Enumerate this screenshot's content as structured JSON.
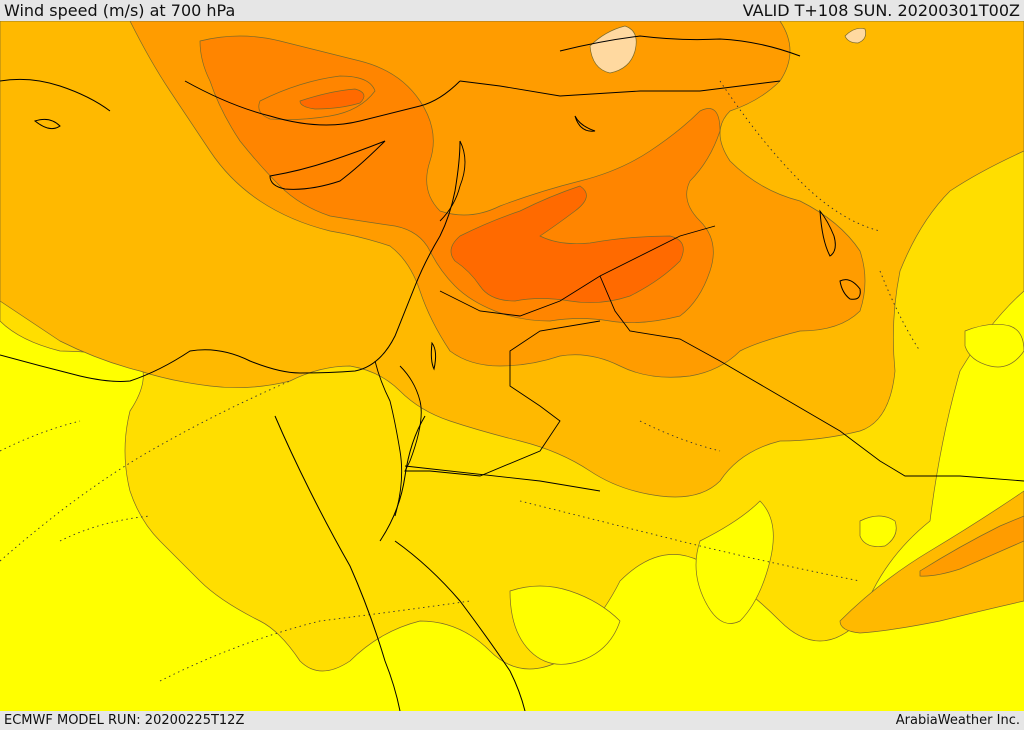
{
  "header": {
    "title": "Wind speed (m/s) at 700 hPa",
    "valid": "VALID T+108 SUN. 20200301T00Z"
  },
  "footer": {
    "model_run": "ECMWF MODEL RUN: 20200225T12Z",
    "credit": "ArabiaWeather Inc."
  },
  "palette": {
    "lt5": "#ffff00",
    "5-10": "#ffde00",
    "10-15": "#ffb900",
    "15-20": "#ff9c00",
    "20-25": "#ff8500",
    "25-30": "#ff6a00",
    "gt30": "#ffd9a0",
    "coast": "#000000"
  }
}
